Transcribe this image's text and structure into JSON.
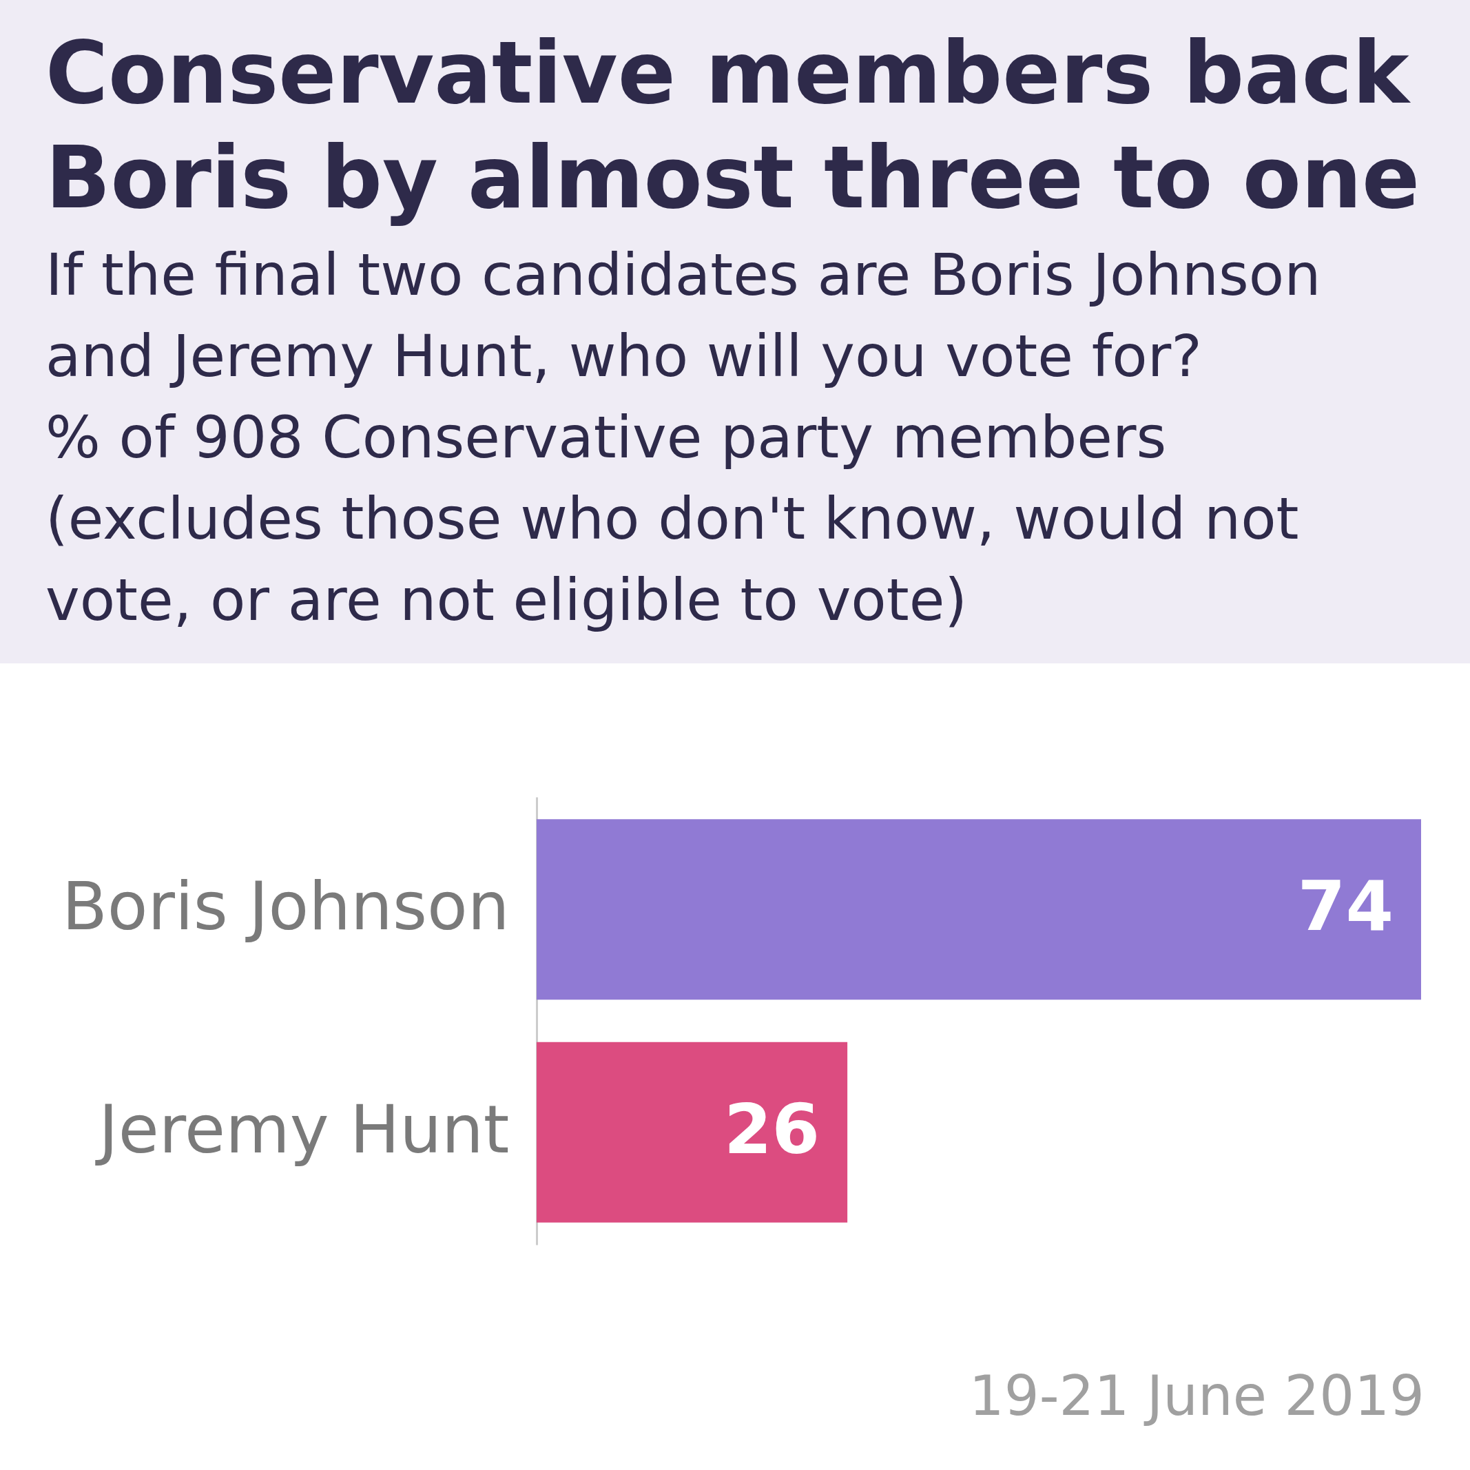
{
  "chart_data": {
    "type": "bar",
    "orientation": "horizontal",
    "title": "Conservative members back Boris by almost three to one",
    "subtitle": "If the final two candidates are Boris Johnson and Jeremy Hunt, who will you vote for?\n% of 908 Conservative party members (excludes those who don't know, would not vote, or are not eligible to vote)",
    "categories": [
      "Boris Johnson",
      "Jeremy Hunt"
    ],
    "values": [
      74,
      26
    ],
    "colors": [
      "#907ad4",
      "#dc4c80"
    ],
    "data_labels": true,
    "annotations": [
      "19-21 June 2019"
    ]
  }
}
